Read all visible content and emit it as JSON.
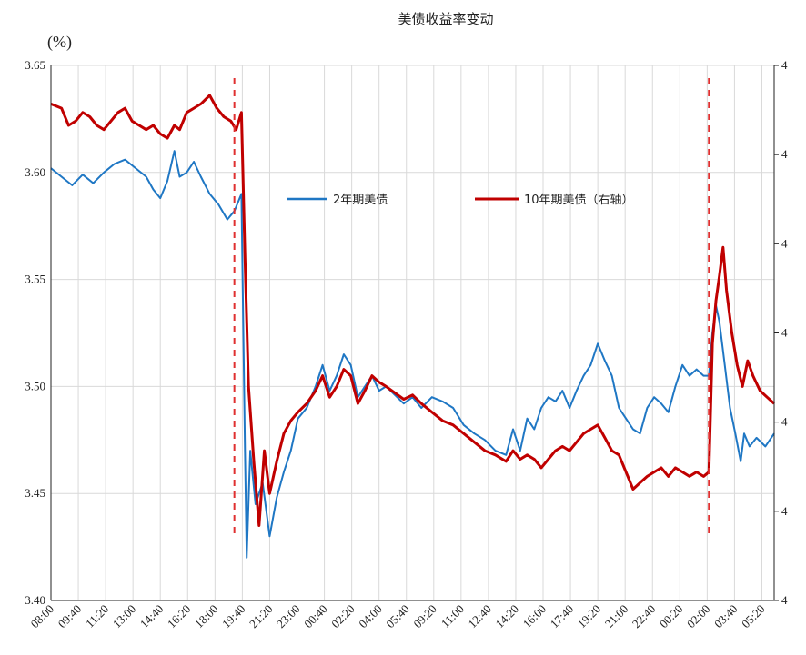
{
  "chart_data": {
    "type": "line",
    "title": "美债收益率变动",
    "ylabel": "(%)",
    "ylim": [
      3.4,
      3.65
    ],
    "yticks": [
      "3.40",
      "3.45",
      "3.50",
      "3.55",
      "3.60",
      "3.65"
    ],
    "y2ticks": [
      "4",
      "4",
      "4",
      "4",
      "4",
      "4",
      "4"
    ],
    "x_labels": [
      "08:00",
      "09:40",
      "11:20",
      "13:00",
      "14:40",
      "16:20",
      "18:00",
      "19:40",
      "21:20",
      "23:00",
      "00:40",
      "02:20",
      "04:00",
      "05:40",
      "09:20",
      "11:00",
      "12:40",
      "14:20",
      "16:00",
      "17:40",
      "19:20",
      "21:00",
      "22:40",
      "00:20",
      "02:00",
      "03:40",
      "05:20"
    ],
    "legend_position": "upper-center",
    "series": [
      {
        "name": "2年期美债",
        "color": "#1f77c4",
        "axis": "left",
        "points": [
          [
            0,
            3.602
          ],
          [
            0.6,
            3.598
          ],
          [
            1.2,
            3.594
          ],
          [
            1.8,
            3.599
          ],
          [
            2.4,
            3.595
          ],
          [
            3,
            3.6
          ],
          [
            3.6,
            3.604
          ],
          [
            4.2,
            3.606
          ],
          [
            4.8,
            3.602
          ],
          [
            5.4,
            3.598
          ],
          [
            5.8,
            3.592
          ],
          [
            6.2,
            3.588
          ],
          [
            6.6,
            3.596
          ],
          [
            7.0,
            3.61
          ],
          [
            7.3,
            3.598
          ],
          [
            7.7,
            3.6
          ],
          [
            8.1,
            3.605
          ],
          [
            8.5,
            3.598
          ],
          [
            9.0,
            3.59
          ],
          [
            9.5,
            3.585
          ],
          [
            10.0,
            3.578
          ],
          [
            10.4,
            3.582
          ],
          [
            10.8,
            3.59
          ],
          [
            11.0,
            3.47
          ],
          [
            11.1,
            3.42
          ],
          [
            11.3,
            3.47
          ],
          [
            11.6,
            3.445
          ],
          [
            12.0,
            3.455
          ],
          [
            12.4,
            3.43
          ],
          [
            12.8,
            3.448
          ],
          [
            13.2,
            3.46
          ],
          [
            13.6,
            3.47
          ],
          [
            14.0,
            3.485
          ],
          [
            14.5,
            3.49
          ],
          [
            15.0,
            3.5
          ],
          [
            15.4,
            3.51
          ],
          [
            15.8,
            3.498
          ],
          [
            16.2,
            3.505
          ],
          [
            16.6,
            3.515
          ],
          [
            17.0,
            3.51
          ],
          [
            17.4,
            3.495
          ],
          [
            17.8,
            3.5
          ],
          [
            18.2,
            3.505
          ],
          [
            18.6,
            3.498
          ],
          [
            19.0,
            3.5
          ],
          [
            19.5,
            3.496
          ],
          [
            20.0,
            3.492
          ],
          [
            20.5,
            3.495
          ],
          [
            21.0,
            3.49
          ],
          [
            21.6,
            3.495
          ],
          [
            22.2,
            3.493
          ],
          [
            22.8,
            3.49
          ],
          [
            23.4,
            3.482
          ],
          [
            24.0,
            3.478
          ],
          [
            24.6,
            3.475
          ],
          [
            25.2,
            3.47
          ],
          [
            25.8,
            3.468
          ],
          [
            26.2,
            3.48
          ],
          [
            26.6,
            3.47
          ],
          [
            27.0,
            3.485
          ],
          [
            27.4,
            3.48
          ],
          [
            27.8,
            3.49
          ],
          [
            28.2,
            3.495
          ],
          [
            28.6,
            3.493
          ],
          [
            29.0,
            3.498
          ],
          [
            29.4,
            3.49
          ],
          [
            29.8,
            3.498
          ],
          [
            30.2,
            3.505
          ],
          [
            30.6,
            3.51
          ],
          [
            31.0,
            3.52
          ],
          [
            31.4,
            3.512
          ],
          [
            31.8,
            3.505
          ],
          [
            32.2,
            3.49
          ],
          [
            32.6,
            3.485
          ],
          [
            33.0,
            3.48
          ],
          [
            33.4,
            3.478
          ],
          [
            33.8,
            3.49
          ],
          [
            34.2,
            3.495
          ],
          [
            34.6,
            3.492
          ],
          [
            35.0,
            3.488
          ],
          [
            35.4,
            3.5
          ],
          [
            35.8,
            3.51
          ],
          [
            36.2,
            3.505
          ],
          [
            36.6,
            3.508
          ],
          [
            37.0,
            3.505
          ],
          [
            37.3,
            3.505
          ],
          [
            37.5,
            3.525
          ],
          [
            37.7,
            3.538
          ],
          [
            37.9,
            3.53
          ],
          [
            38.2,
            3.51
          ],
          [
            38.5,
            3.49
          ],
          [
            38.8,
            3.478
          ],
          [
            39.1,
            3.465
          ],
          [
            39.3,
            3.478
          ],
          [
            39.6,
            3.472
          ],
          [
            40.0,
            3.476
          ],
          [
            40.5,
            3.472
          ],
          [
            41,
            3.478
          ]
        ]
      },
      {
        "name": "10年期美债（右轴）",
        "color": "#c00000",
        "axis": "right",
        "points": [
          [
            0,
            3.632
          ],
          [
            0.6,
            3.63
          ],
          [
            1.0,
            3.622
          ],
          [
            1.4,
            3.624
          ],
          [
            1.8,
            3.628
          ],
          [
            2.2,
            3.626
          ],
          [
            2.6,
            3.622
          ],
          [
            3.0,
            3.62
          ],
          [
            3.4,
            3.624
          ],
          [
            3.8,
            3.628
          ],
          [
            4.2,
            3.63
          ],
          [
            4.6,
            3.624
          ],
          [
            5.0,
            3.622
          ],
          [
            5.4,
            3.62
          ],
          [
            5.8,
            3.622
          ],
          [
            6.2,
            3.618
          ],
          [
            6.6,
            3.616
          ],
          [
            7.0,
            3.622
          ],
          [
            7.3,
            3.62
          ],
          [
            7.7,
            3.628
          ],
          [
            8.1,
            3.63
          ],
          [
            8.5,
            3.632
          ],
          [
            9.0,
            3.636
          ],
          [
            9.4,
            3.63
          ],
          [
            9.8,
            3.626
          ],
          [
            10.2,
            3.624
          ],
          [
            10.5,
            3.62
          ],
          [
            10.8,
            3.628
          ],
          [
            11.0,
            3.56
          ],
          [
            11.2,
            3.5
          ],
          [
            11.5,
            3.465
          ],
          [
            11.8,
            3.435
          ],
          [
            12.1,
            3.47
          ],
          [
            12.4,
            3.45
          ],
          [
            12.8,
            3.465
          ],
          [
            13.2,
            3.478
          ],
          [
            13.6,
            3.484
          ],
          [
            14.0,
            3.488
          ],
          [
            14.5,
            3.492
          ],
          [
            15.0,
            3.498
          ],
          [
            15.4,
            3.505
          ],
          [
            15.8,
            3.495
          ],
          [
            16.2,
            3.5
          ],
          [
            16.6,
            3.508
          ],
          [
            17.0,
            3.505
          ],
          [
            17.4,
            3.492
          ],
          [
            17.8,
            3.498
          ],
          [
            18.2,
            3.505
          ],
          [
            18.6,
            3.502
          ],
          [
            19.0,
            3.5
          ],
          [
            19.5,
            3.497
          ],
          [
            20.0,
            3.494
          ],
          [
            20.5,
            3.496
          ],
          [
            21.0,
            3.492
          ],
          [
            21.6,
            3.488
          ],
          [
            22.2,
            3.484
          ],
          [
            22.8,
            3.482
          ],
          [
            23.4,
            3.478
          ],
          [
            24.0,
            3.474
          ],
          [
            24.6,
            3.47
          ],
          [
            25.2,
            3.468
          ],
          [
            25.8,
            3.465
          ],
          [
            26.2,
            3.47
          ],
          [
            26.6,
            3.466
          ],
          [
            27.0,
            3.468
          ],
          [
            27.4,
            3.466
          ],
          [
            27.8,
            3.462
          ],
          [
            28.2,
            3.466
          ],
          [
            28.6,
            3.47
          ],
          [
            29.0,
            3.472
          ],
          [
            29.4,
            3.47
          ],
          [
            29.8,
            3.474
          ],
          [
            30.2,
            3.478
          ],
          [
            30.6,
            3.48
          ],
          [
            31.0,
            3.482
          ],
          [
            31.4,
            3.476
          ],
          [
            31.8,
            3.47
          ],
          [
            32.2,
            3.468
          ],
          [
            32.6,
            3.46
          ],
          [
            33.0,
            3.452
          ],
          [
            33.4,
            3.455
          ],
          [
            33.8,
            3.458
          ],
          [
            34.2,
            3.46
          ],
          [
            34.6,
            3.462
          ],
          [
            35.0,
            3.458
          ],
          [
            35.4,
            3.462
          ],
          [
            35.8,
            3.46
          ],
          [
            36.2,
            3.458
          ],
          [
            36.6,
            3.46
          ],
          [
            37.0,
            3.458
          ],
          [
            37.3,
            3.46
          ],
          [
            37.5,
            3.52
          ],
          [
            37.7,
            3.54
          ],
          [
            37.9,
            3.552
          ],
          [
            38.1,
            3.565
          ],
          [
            38.3,
            3.545
          ],
          [
            38.6,
            3.525
          ],
          [
            38.9,
            3.51
          ],
          [
            39.2,
            3.5
          ],
          [
            39.5,
            3.512
          ],
          [
            39.8,
            3.505
          ],
          [
            40.2,
            3.498
          ],
          [
            40.6,
            3.495
          ],
          [
            41,
            3.492
          ]
        ]
      }
    ],
    "event_lines_x": [
      10.4,
      37.3
    ]
  }
}
